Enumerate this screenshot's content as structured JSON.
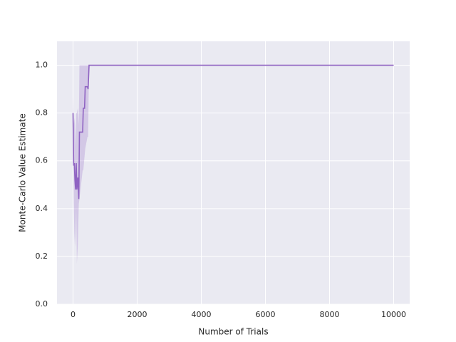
{
  "chart_data": {
    "type": "line",
    "xlabel": "Number of Trials",
    "ylabel": "Monte-Carlo Value Estimate",
    "x": [
      0,
      20,
      40,
      60,
      80,
      100,
      120,
      150,
      180,
      200,
      300,
      320,
      360,
      380,
      450,
      470,
      500,
      10000
    ],
    "values": [
      0.8,
      0.58,
      0.59,
      0.52,
      0.48,
      0.59,
      0.48,
      0.53,
      0.44,
      0.72,
      0.72,
      0.82,
      0.82,
      0.91,
      0.91,
      0.9,
      1.0,
      1.0
    ],
    "band_lower": [
      0.7,
      0.45,
      0.3,
      0.24,
      0.3,
      0.4,
      0.17,
      0.25,
      0.42,
      0.44,
      0.56,
      0.56,
      0.62,
      0.65,
      0.7,
      0.7,
      1.0,
      1.0
    ],
    "band_upper": [
      0.87,
      0.75,
      0.78,
      0.75,
      0.66,
      0.8,
      0.8,
      0.82,
      0.75,
      1.0,
      1.0,
      1.0,
      1.0,
      1.0,
      1.0,
      1.0,
      1.0,
      1.0
    ],
    "color": "#8f63c2",
    "xlim": [
      -500,
      10500
    ],
    "ylim": [
      0,
      1.1
    ],
    "xticks": [
      0,
      2000,
      4000,
      6000,
      8000,
      10000
    ],
    "yticks": [
      {
        "value": 0,
        "label": "0.0"
      },
      {
        "value": 0.2,
        "label": "0.2"
      },
      {
        "value": 0.4,
        "label": "0.4"
      },
      {
        "value": 0.6,
        "label": "0.6"
      },
      {
        "value": 0.8,
        "label": "0.8"
      },
      {
        "value": 1,
        "label": "1.0"
      }
    ],
    "grid": true
  }
}
